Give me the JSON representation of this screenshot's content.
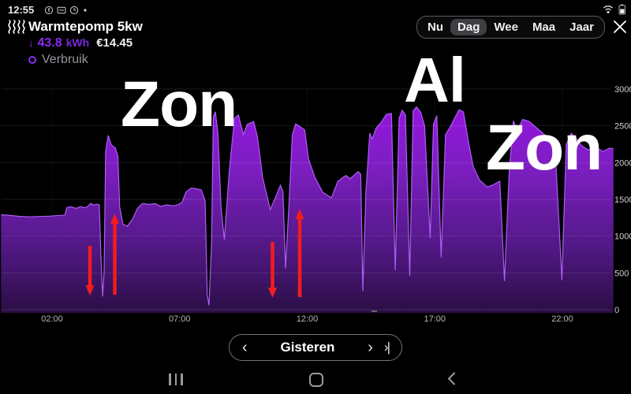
{
  "status_bar": {
    "time": "12:55"
  },
  "header": {
    "title": "Warmtepomp 5kw",
    "delta_arrow": "↓",
    "value": "43.8",
    "unit": "kWh",
    "cost": "€14.45",
    "legend_label": "Verbruik"
  },
  "tabs": {
    "items": [
      "Nu",
      "Dag",
      "Wee",
      "Maa",
      "Jaar"
    ],
    "selected": "Dag"
  },
  "annotations": {
    "zon_left": "Zon",
    "al": "Al",
    "zon_right": "Zon",
    "arrows": [
      {
        "direction": "down",
        "x": 114,
        "y_from": 312,
        "y_to": 374
      },
      {
        "direction": "up",
        "x": 145.5,
        "y_from": 374,
        "y_to": 272
      },
      {
        "direction": "down",
        "x": 345.5,
        "y_from": 307,
        "y_to": 377
      },
      {
        "direction": "up",
        "x": 380,
        "y_from": 377,
        "y_to": 266
      }
    ]
  },
  "footer": {
    "prev": "‹",
    "label": "Gisteren",
    "next": "›",
    "skip": "›|"
  },
  "colors": {
    "accent_purple": "#8133f1",
    "gradient_top": "#9b13e6",
    "gradient_bottom": "#2b0e45",
    "area_stroke": "#ad5cf5",
    "arrow_red": "#f21d1d",
    "selected_tab_bg": "#3e3e43"
  },
  "chart_data": {
    "type": "area",
    "title": "Warmtepomp 5kw",
    "ylabel": "",
    "xlabel": "",
    "ylim": [
      0,
      3000
    ],
    "y_ticks": [
      0,
      500,
      1000,
      1500,
      2000,
      2500,
      3000
    ],
    "xlim_hours": [
      0,
      24
    ],
    "x_ticks": [
      {
        "hour": 2,
        "label": "02:00"
      },
      {
        "hour": 7,
        "label": "07:00"
      },
      {
        "hour": 12,
        "label": "12:00"
      },
      {
        "hour": 17,
        "label": "17:00"
      },
      {
        "hour": 22,
        "label": "22:00"
      }
    ],
    "grid": true,
    "legend_position": "top-left",
    "series": [
      {
        "name": "Verbruik",
        "unit": "W",
        "points": [
          [
            0,
            1290
          ],
          [
            0.3,
            1285
          ],
          [
            0.7,
            1270
          ],
          [
            1.1,
            1262
          ],
          [
            1.5,
            1268
          ],
          [
            1.9,
            1272
          ],
          [
            2.3,
            1282
          ],
          [
            2.5,
            1285
          ],
          [
            2.58,
            1390
          ],
          [
            2.75,
            1398
          ],
          [
            2.95,
            1378
          ],
          [
            3.1,
            1402
          ],
          [
            3.3,
            1385
          ],
          [
            3.42,
            1412
          ],
          [
            3.52,
            1448
          ],
          [
            3.62,
            1420
          ],
          [
            3.75,
            1435
          ],
          [
            3.85,
            1428
          ],
          [
            3.92,
            700
          ],
          [
            3.98,
            180
          ],
          [
            4.04,
            520
          ],
          [
            4.1,
            2150
          ],
          [
            4.2,
            2370
          ],
          [
            4.32,
            2240
          ],
          [
            4.48,
            2200
          ],
          [
            4.58,
            2080
          ],
          [
            4.65,
            1400
          ],
          [
            4.78,
            1160
          ],
          [
            4.95,
            1135
          ],
          [
            5.15,
            1230
          ],
          [
            5.35,
            1380
          ],
          [
            5.55,
            1445
          ],
          [
            5.8,
            1430
          ],
          [
            6.05,
            1442
          ],
          [
            6.25,
            1405
          ],
          [
            6.5,
            1425
          ],
          [
            6.75,
            1412
          ],
          [
            6.95,
            1428
          ],
          [
            7.1,
            1465
          ],
          [
            7.25,
            1600
          ],
          [
            7.45,
            1652
          ],
          [
            7.65,
            1645
          ],
          [
            7.85,
            1628
          ],
          [
            8.0,
            1480
          ],
          [
            8.08,
            200
          ],
          [
            8.15,
            60
          ],
          [
            8.25,
            900
          ],
          [
            8.32,
            2620
          ],
          [
            8.4,
            2690
          ],
          [
            8.5,
            2400
          ],
          [
            8.62,
            1400
          ],
          [
            8.75,
            950
          ],
          [
            8.95,
            1900
          ],
          [
            9.15,
            2600
          ],
          [
            9.3,
            2648
          ],
          [
            9.5,
            2380
          ],
          [
            9.65,
            2520
          ],
          [
            9.9,
            2558
          ],
          [
            10.05,
            2350
          ],
          [
            10.25,
            1800
          ],
          [
            10.55,
            1360
          ],
          [
            10.75,
            1520
          ],
          [
            10.95,
            1692
          ],
          [
            11.05,
            1600
          ],
          [
            11.15,
            560
          ],
          [
            11.28,
            1400
          ],
          [
            11.42,
            2380
          ],
          [
            11.55,
            2528
          ],
          [
            11.75,
            2480
          ],
          [
            11.9,
            2442
          ],
          [
            12.05,
            2050
          ],
          [
            12.3,
            1800
          ],
          [
            12.6,
            1600
          ],
          [
            12.95,
            1520
          ],
          [
            13.2,
            1745
          ],
          [
            13.38,
            1792
          ],
          [
            13.52,
            1825
          ],
          [
            13.68,
            1780
          ],
          [
            13.85,
            1832
          ],
          [
            14.0,
            1878
          ],
          [
            14.1,
            1840
          ],
          [
            14.18,
            250
          ],
          [
            14.3,
            1600
          ],
          [
            14.45,
            2400
          ],
          [
            14.55,
            2320
          ],
          [
            14.7,
            2468
          ],
          [
            14.9,
            2548
          ],
          [
            15.1,
            2655
          ],
          [
            15.3,
            2668
          ],
          [
            15.45,
            535
          ],
          [
            15.6,
            2600
          ],
          [
            15.72,
            2712
          ],
          [
            15.85,
            2650
          ],
          [
            16.02,
            460
          ],
          [
            16.15,
            2700
          ],
          [
            16.28,
            2758
          ],
          [
            16.45,
            2680
          ],
          [
            16.6,
            2500
          ],
          [
            16.82,
            975
          ],
          [
            16.95,
            2520
          ],
          [
            17.08,
            2638
          ],
          [
            17.25,
            710
          ],
          [
            17.42,
            2380
          ],
          [
            17.6,
            2482
          ],
          [
            17.8,
            2620
          ],
          [
            17.95,
            2718
          ],
          [
            18.12,
            2690
          ],
          [
            18.3,
            2320
          ],
          [
            18.5,
            1950
          ],
          [
            18.75,
            1762
          ],
          [
            19.05,
            1668
          ],
          [
            19.3,
            1700
          ],
          [
            19.55,
            1748
          ],
          [
            19.73,
            390
          ],
          [
            19.92,
            1900
          ],
          [
            20.08,
            2568
          ],
          [
            20.22,
            2432
          ],
          [
            20.45,
            2588
          ],
          [
            20.7,
            2560
          ],
          [
            21.0,
            2470
          ],
          [
            21.35,
            2362
          ],
          [
            21.7,
            2302
          ],
          [
            21.98,
            400
          ],
          [
            22.15,
            2250
          ],
          [
            22.35,
            2398
          ],
          [
            22.55,
            2322
          ],
          [
            22.75,
            2232
          ],
          [
            23.0,
            2172
          ],
          [
            23.3,
            2208
          ],
          [
            23.6,
            2152
          ],
          [
            23.85,
            2196
          ],
          [
            24,
            2190
          ]
        ]
      }
    ]
  }
}
